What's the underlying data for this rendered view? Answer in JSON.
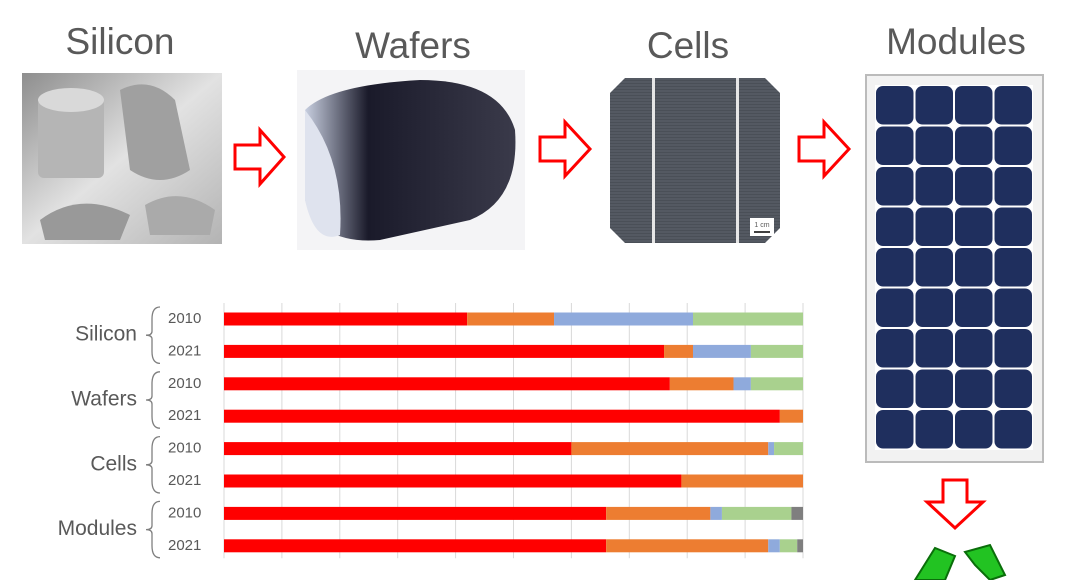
{
  "stages": [
    "Silicon",
    "Wafers",
    "Cells",
    "Modules"
  ],
  "scale_label": "1 cm",
  "chart_data": {
    "type": "stacked-bar-horizontal",
    "groups": [
      "Silicon",
      "Wafers",
      "Cells",
      "Modules"
    ],
    "categories": [
      "2010",
      "2021",
      "2010",
      "2021",
      "2010",
      "2021",
      "2010",
      "2021"
    ],
    "series": [
      {
        "color": "#ff0000",
        "values": [
          42,
          76,
          77,
          96,
          60,
          79,
          66,
          66
        ]
      },
      {
        "color": "#ed7d31",
        "values": [
          15,
          5,
          11,
          4,
          34,
          21,
          18,
          28
        ]
      },
      {
        "color": "#8faadc",
        "values": [
          24,
          10,
          3,
          0,
          1,
          0,
          2,
          2
        ]
      },
      {
        "color": "#a9d18e",
        "values": [
          19,
          9,
          9,
          0,
          5,
          0,
          12,
          3
        ]
      },
      {
        "color": "#7f7f7f",
        "values": [
          0,
          0,
          0,
          0,
          0,
          0,
          2,
          1
        ]
      }
    ],
    "xlim": [
      0,
      100
    ],
    "xticks": [
      0,
      10,
      20,
      30,
      40,
      50,
      60,
      70,
      80,
      90,
      100
    ],
    "grid": true
  }
}
